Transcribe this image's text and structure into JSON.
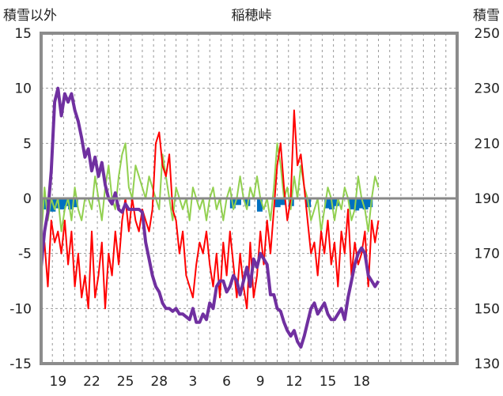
{
  "chart_data": {
    "type": "line",
    "title": "稲穂峠",
    "left_axis_label": "積雪以外",
    "right_axis_label": "積雪",
    "left_ylim": [
      -15,
      15
    ],
    "left_yticks": [
      15,
      10,
      5,
      0,
      -5,
      -10,
      -15
    ],
    "right_ylim": [
      130,
      250
    ],
    "right_yticks": [
      250,
      230,
      210,
      190,
      170,
      150,
      130
    ],
    "x_range": [
      0,
      37
    ],
    "x_ticks": [
      {
        "x": 1.5,
        "label": "19"
      },
      {
        "x": 4.5,
        "label": "22"
      },
      {
        "x": 7.5,
        "label": "25"
      },
      {
        "x": 10.5,
        "label": "28"
      },
      {
        "x": 13.5,
        "label": "3"
      },
      {
        "x": 16.5,
        "label": "6"
      },
      {
        "x": 19.5,
        "label": "9"
      },
      {
        "x": 22.5,
        "label": "12"
      },
      {
        "x": 25.5,
        "label": "15"
      },
      {
        "x": 28.5,
        "label": "18"
      }
    ],
    "grid": true,
    "series": [
      {
        "axis": "left",
        "color": "#92d050",
        "style": "line",
        "x": [
          0,
          0.3,
          0.6,
          0.9,
          1.2,
          1.5,
          1.8,
          2.1,
          2.4,
          2.7,
          3.0,
          3.3,
          3.6,
          3.9,
          4.2,
          4.5,
          4.8,
          5.1,
          5.4,
          5.7,
          6.0,
          6.3,
          6.6,
          6.9,
          7.2,
          7.5,
          7.8,
          8.1,
          8.4,
          8.7,
          9.0,
          9.3,
          9.6,
          9.9,
          10.2,
          10.5,
          10.8,
          11.1,
          11.4,
          11.7,
          12.0,
          12.3,
          12.6,
          12.9,
          13.2,
          13.5,
          13.8,
          14.1,
          14.4,
          14.7,
          15.0,
          15.3,
          15.6,
          15.9,
          16.2,
          16.5,
          16.8,
          17.1,
          17.4,
          17.7,
          18.0,
          18.3,
          18.6,
          18.9,
          19.2,
          19.5,
          19.8,
          20.1,
          20.4,
          20.7,
          21.0,
          21.3,
          21.6,
          21.9,
          22.2,
          22.5,
          22.8,
          23.1,
          23.4,
          23.7,
          24.0,
          24.3,
          24.6,
          24.9,
          25.2,
          25.5,
          25.8,
          26.1,
          26.4,
          26.7,
          27.0,
          27.3,
          27.6,
          27.9,
          28.2,
          28.5,
          28.8,
          29.1,
          29.4,
          29.7,
          30.0
        ],
        "values": [
          -4,
          1,
          -2,
          0,
          -1,
          0,
          -3,
          -1,
          0,
          -2,
          1,
          -1,
          -2,
          0,
          0,
          -1,
          2,
          0,
          -2,
          1,
          3,
          0,
          -1,
          2,
          4,
          5,
          1,
          0,
          3,
          2,
          1,
          0,
          2,
          1,
          0,
          -1,
          4,
          2,
          0,
          -2,
          1,
          0,
          -1,
          0,
          -2,
          1,
          0,
          -1,
          0,
          -2,
          0,
          1,
          -1,
          0,
          -2,
          0,
          1,
          -1,
          0,
          2,
          0,
          -1,
          1,
          0,
          2,
          0,
          -1,
          0,
          -2,
          1,
          5,
          3,
          0,
          1,
          -1,
          2,
          0,
          3,
          1,
          0,
          -2,
          -1,
          0,
          -3,
          -1,
          1,
          0,
          -2,
          0,
          -1,
          1,
          0,
          -2,
          -1,
          2,
          0,
          -1,
          -3,
          0,
          2,
          1
        ]
      },
      {
        "axis": "left",
        "color": "#ff0000",
        "style": "line",
        "x": [
          0,
          0.3,
          0.6,
          0.9,
          1.2,
          1.5,
          1.8,
          2.1,
          2.4,
          2.7,
          3.0,
          3.3,
          3.6,
          3.9,
          4.2,
          4.5,
          4.8,
          5.1,
          5.4,
          5.7,
          6.0,
          6.3,
          6.6,
          6.9,
          7.2,
          7.5,
          7.8,
          8.1,
          8.4,
          8.7,
          9.0,
          9.3,
          9.6,
          9.9,
          10.2,
          10.5,
          10.8,
          11.1,
          11.4,
          11.7,
          12.0,
          12.3,
          12.6,
          12.9,
          13.2,
          13.5,
          13.8,
          14.1,
          14.4,
          14.7,
          15.0,
          15.3,
          15.6,
          15.9,
          16.2,
          16.5,
          16.8,
          17.1,
          17.4,
          17.7,
          18.0,
          18.3,
          18.6,
          18.9,
          19.2,
          19.5,
          19.8,
          20.1,
          20.4,
          20.7,
          21.0,
          21.3,
          21.6,
          21.9,
          22.2,
          22.5,
          22.8,
          23.1,
          23.4,
          23.7,
          24.0,
          24.3,
          24.6,
          24.9,
          25.2,
          25.5,
          25.8,
          26.1,
          26.4,
          26.7,
          27.0,
          27.3,
          27.6,
          27.9,
          28.2,
          28.5,
          28.8,
          29.1,
          29.4,
          29.7,
          30.0
        ],
        "values": [
          -5,
          -4,
          -8,
          -2,
          -4,
          -3,
          -5,
          -2,
          -6,
          -3,
          -8,
          -5,
          -9,
          -7,
          -10,
          -3,
          -9,
          -7,
          -4,
          -10,
          -5,
          -7,
          -3,
          -6,
          -2,
          0,
          -3,
          0,
          -2,
          -3,
          -1,
          -2,
          -3,
          -1,
          5,
          6,
          3,
          2,
          4,
          -1,
          -2,
          -5,
          -3,
          -7,
          -8,
          -9,
          -6,
          -4,
          -5,
          -3,
          -6,
          -8,
          -5,
          -9,
          -4,
          -7,
          -3,
          -6,
          -9,
          -5,
          -8,
          -10,
          -4,
          -9,
          -7,
          -3,
          -6,
          -2,
          -5,
          -1,
          3,
          5,
          1,
          -2,
          0,
          8,
          3,
          4,
          1,
          -2,
          -5,
          -4,
          -7,
          -3,
          -5,
          -2,
          -6,
          -4,
          -8,
          -3,
          -5,
          -1,
          -7,
          -4,
          -6,
          -5,
          -3,
          -8,
          -2,
          -4,
          -2
        ]
      },
      {
        "axis": "left",
        "color": "#0070c0",
        "style": "bar",
        "x": [
          0,
          0.4,
          0.8,
          1.2,
          1.6,
          2.0,
          2.4,
          2.8,
          16.8,
          17.3,
          18.1,
          19.2,
          20.8,
          21.2,
          22.0,
          23.5,
          25.2,
          25.6,
          26.0,
          27.4,
          27.8,
          28.2,
          28.6,
          29.0
        ],
        "values": [
          -1,
          -0.8,
          -1.2,
          -0.9,
          -1,
          -0.7,
          -1,
          -0.8,
          -0.9,
          -0.6,
          -0.7,
          -1.2,
          -0.8,
          -0.6,
          -0.7,
          -0.8,
          -0.9,
          -1,
          -0.7,
          -1,
          -1.1,
          -0.9,
          -1,
          -0.8
        ]
      },
      {
        "axis": "right",
        "color": "#7030a0",
        "style": "line",
        "x": [
          0,
          0.3,
          0.6,
          0.9,
          1.2,
          1.5,
          1.8,
          2.1,
          2.4,
          2.7,
          3.0,
          3.3,
          3.6,
          3.9,
          4.2,
          4.5,
          4.8,
          5.1,
          5.4,
          5.7,
          6.0,
          6.3,
          6.6,
          6.9,
          7.2,
          7.5,
          7.8,
          8.1,
          8.4,
          8.7,
          9.0,
          9.3,
          9.6,
          9.9,
          10.2,
          10.5,
          10.8,
          11.1,
          11.4,
          11.7,
          12.0,
          12.3,
          12.6,
          12.9,
          13.2,
          13.5,
          13.8,
          14.1,
          14.4,
          14.7,
          15.0,
          15.3,
          15.6,
          15.9,
          16.2,
          16.5,
          16.8,
          17.1,
          17.4,
          17.7,
          18.0,
          18.3,
          18.6,
          18.9,
          19.2,
          19.5,
          19.8,
          20.1,
          20.4,
          20.7,
          21.0,
          21.3,
          21.6,
          21.9,
          22.2,
          22.5,
          22.8,
          23.1,
          23.4,
          23.7,
          24.0,
          24.3,
          24.6,
          24.9,
          25.2,
          25.5,
          25.8,
          26.1,
          26.4,
          26.7,
          27.0,
          27.3,
          27.6,
          27.9,
          28.2,
          28.5,
          28.8,
          29.1,
          29.4,
          29.7,
          30.0
        ],
        "values": [
          165,
          178,
          185,
          200,
          225,
          230,
          220,
          228,
          225,
          228,
          222,
          218,
          212,
          205,
          208,
          200,
          205,
          198,
          203,
          195,
          190,
          188,
          192,
          186,
          185,
          188,
          186,
          186,
          186,
          186,
          185,
          174,
          168,
          162,
          158,
          156,
          152,
          150,
          150,
          149,
          150,
          148,
          148,
          147,
          146,
          150,
          145,
          145,
          148,
          146,
          152,
          150,
          158,
          160,
          160,
          156,
          158,
          162,
          160,
          155,
          160,
          165,
          158,
          168,
          165,
          170,
          168,
          166,
          155,
          155,
          150,
          149,
          145,
          142,
          140,
          142,
          138,
          136,
          140,
          145,
          150,
          152,
          148,
          150,
          152,
          148,
          146,
          146,
          148,
          150,
          146,
          154,
          160,
          166,
          170,
          172,
          170,
          162,
          160,
          158,
          160
        ]
      }
    ]
  }
}
